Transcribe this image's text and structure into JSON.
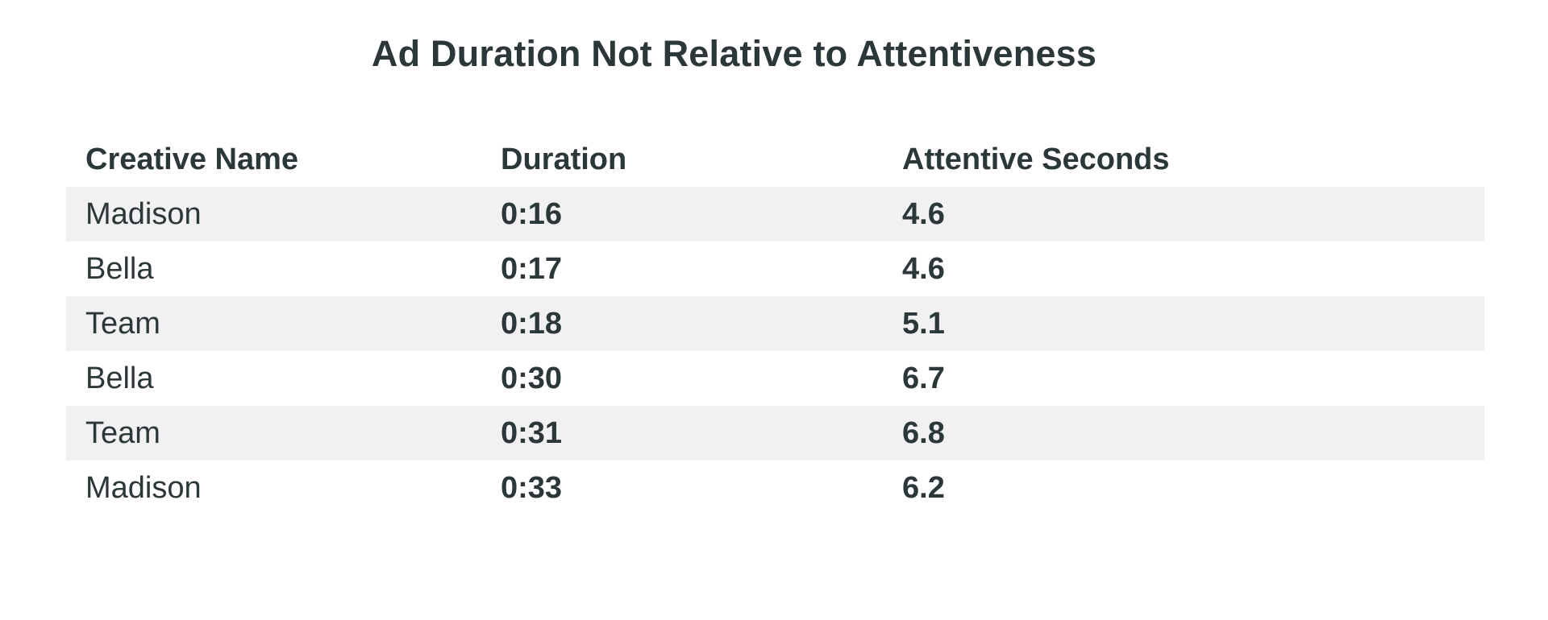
{
  "title": "Ad Duration Not Relative to Attentiveness",
  "colors": {
    "text": "#2c373a",
    "row_stripe": "#f1f1f1",
    "background": "#ffffff"
  },
  "table": {
    "columns": [
      "Creative Name",
      "Duration",
      "Attentive Seconds"
    ],
    "rows": [
      {
        "creative_name": "Madison",
        "duration": "0:16",
        "attentive_seconds": "4.6"
      },
      {
        "creative_name": "Bella",
        "duration": "0:17",
        "attentive_seconds": "4.6"
      },
      {
        "creative_name": "Team",
        "duration": "0:18",
        "attentive_seconds": "5.1"
      },
      {
        "creative_name": "Bella",
        "duration": "0:30",
        "attentive_seconds": "6.7"
      },
      {
        "creative_name": "Team",
        "duration": "0:31",
        "attentive_seconds": "6.8"
      },
      {
        "creative_name": "Madison",
        "duration": "0:33",
        "attentive_seconds": "6.2"
      }
    ]
  },
  "chart_data": {
    "type": "table",
    "title": "Ad Duration Not Relative to Attentiveness",
    "columns": [
      "Creative Name",
      "Duration",
      "Attentive Seconds"
    ],
    "rows": [
      [
        "Madison",
        "0:16",
        4.6
      ],
      [
        "Bella",
        "0:17",
        4.6
      ],
      [
        "Team",
        "0:18",
        5.1
      ],
      [
        "Bella",
        "0:30",
        6.7
      ],
      [
        "Team",
        "0:31",
        6.8
      ],
      [
        "Madison",
        "0:33",
        6.2
      ]
    ],
    "layout": {
      "striped_rows": "odd data rows shaded",
      "header_style": "bold",
      "numeric_columns_bold": true,
      "grid": false
    }
  }
}
